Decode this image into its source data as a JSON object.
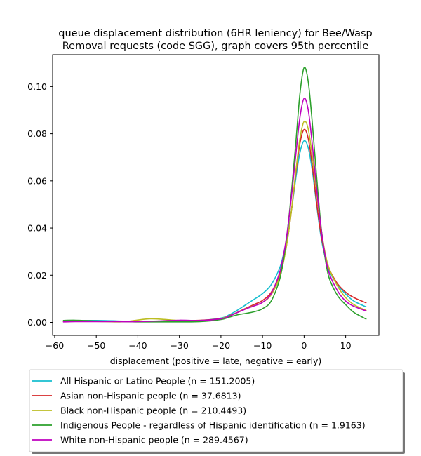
{
  "chart_data": {
    "type": "line",
    "title": "queue displacement distribution (6HR leniency) for Bee/Wasp\nRemoval  requests (code SGG), graph covers 95th percentile",
    "xlabel": "displacement (positive = late, negative = early)",
    "ylabel": "",
    "xlim": [
      -60.5,
      18
    ],
    "ylim": [
      -0.0055,
      0.1135
    ],
    "x_ticks": [
      -60,
      -50,
      -40,
      -30,
      -20,
      -10,
      0,
      10
    ],
    "x_tick_labels": [
      "−60",
      "−50",
      "−40",
      "−30",
      "−20",
      "−10",
      "0",
      "10"
    ],
    "y_ticks": [
      0.0,
      0.02,
      0.04,
      0.06,
      0.08,
      0.1
    ],
    "y_tick_labels": [
      "0.00",
      "0.02",
      "0.04",
      "0.06",
      "0.08",
      "0.10"
    ],
    "grid": false,
    "legend_position": "below",
    "series": [
      {
        "name": "All Hispanic or Latino People (n = 151.2005)",
        "color": "#17becf",
        "x": [
          -58,
          -55,
          -50,
          -45,
          -40,
          -35,
          -30,
          -25,
          -20,
          -18,
          -16,
          -14,
          -12,
          -10,
          -8,
          -6,
          -5,
          -4,
          -3,
          -2,
          -1,
          0,
          1,
          2,
          3,
          4,
          5,
          6,
          8,
          10,
          12,
          15
        ],
        "y": [
          0.0004,
          0.0007,
          0.0008,
          0.0006,
          0.0003,
          0.0003,
          0.0005,
          0.0008,
          0.0018,
          0.0032,
          0.0052,
          0.0075,
          0.0098,
          0.0122,
          0.0158,
          0.0225,
          0.0285,
          0.037,
          0.048,
          0.061,
          0.072,
          0.077,
          0.074,
          0.064,
          0.05,
          0.037,
          0.028,
          0.022,
          0.016,
          0.012,
          0.009,
          0.0065
        ]
      },
      {
        "name": "Asian non-Hispanic people (n = 37.6813)",
        "color": "#d62728",
        "x": [
          -58,
          -55,
          -50,
          -45,
          -40,
          -35,
          -30,
          -25,
          -20,
          -18,
          -16,
          -14,
          -12,
          -10,
          -8,
          -6,
          -5,
          -4,
          -3,
          -2,
          -1,
          0,
          1,
          2,
          3,
          4,
          5,
          6,
          8,
          10,
          12,
          15
        ],
        "y": [
          0.0004,
          0.0006,
          0.0005,
          0.0004,
          0.0003,
          0.0005,
          0.0008,
          0.0009,
          0.0016,
          0.0028,
          0.0043,
          0.006,
          0.0076,
          0.0093,
          0.0125,
          0.0195,
          0.026,
          0.035,
          0.048,
          0.063,
          0.076,
          0.0818,
          0.078,
          0.066,
          0.051,
          0.038,
          0.029,
          0.0228,
          0.0165,
          0.0128,
          0.0105,
          0.0082
        ]
      },
      {
        "name": "Black non-Hispanic people (n = 210.4493)",
        "color": "#bcbd22",
        "x": [
          -58,
          -55,
          -50,
          -45,
          -42,
          -40,
          -37,
          -34,
          -31,
          -28,
          -25,
          -22,
          -20,
          -18,
          -16,
          -14,
          -12,
          -10,
          -8,
          -6,
          -5,
          -4,
          -3,
          -2,
          -1,
          0,
          1,
          2,
          3,
          4,
          5,
          6,
          8,
          10,
          12,
          15
        ],
        "y": [
          0.0006,
          0.0005,
          0.0004,
          0.0002,
          0.0005,
          0.001,
          0.0015,
          0.0013,
          0.0009,
          0.0006,
          0.0006,
          0.0009,
          0.0016,
          0.0027,
          0.0042,
          0.0058,
          0.0071,
          0.0085,
          0.0115,
          0.0185,
          0.0252,
          0.035,
          0.048,
          0.064,
          0.078,
          0.0852,
          0.082,
          0.07,
          0.055,
          0.041,
          0.03,
          0.023,
          0.0155,
          0.0105,
          0.0075,
          0.005
        ]
      },
      {
        "name": "Indigenous People - regardless of Hispanic identification (n = 1.9163)",
        "color": "#2ca02c",
        "x": [
          -58,
          -55,
          -50,
          -45,
          -40,
          -35,
          -30,
          -25,
          -20,
          -18,
          -16,
          -14,
          -12,
          -10,
          -8,
          -6,
          -5,
          -4,
          -3,
          -2,
          -1,
          0,
          1,
          2,
          3,
          4,
          5,
          6,
          8,
          10,
          12,
          15
        ],
        "y": [
          0.0008,
          0.0009,
          0.0006,
          0.0004,
          0.0002,
          0.0002,
          0.0002,
          0.0003,
          0.0012,
          0.0022,
          0.0032,
          0.0038,
          0.0045,
          0.0058,
          0.0088,
          0.0175,
          0.026,
          0.039,
          0.056,
          0.076,
          0.097,
          0.108,
          0.102,
          0.084,
          0.062,
          0.042,
          0.028,
          0.019,
          0.0115,
          0.0075,
          0.0042,
          0.0013
        ]
      },
      {
        "name": "White non-Hispanic people (n = 289.4567)",
        "color": "#bf00bf",
        "x": [
          -58,
          -55,
          -50,
          -45,
          -40,
          -35,
          -30,
          -25,
          -20,
          -18,
          -16,
          -14,
          -12,
          -10,
          -8,
          -6,
          -5,
          -4,
          -3,
          -2,
          -1,
          0,
          1,
          2,
          3,
          4,
          5,
          6,
          8,
          10,
          12,
          15
        ],
        "y": [
          0.0002,
          0.0003,
          0.0003,
          0.0003,
          0.0003,
          0.0006,
          0.0009,
          0.0008,
          0.0015,
          0.0026,
          0.0042,
          0.0057,
          0.007,
          0.0085,
          0.012,
          0.0205,
          0.028,
          0.039,
          0.054,
          0.071,
          0.087,
          0.095,
          0.09,
          0.075,
          0.057,
          0.041,
          0.029,
          0.021,
          0.0135,
          0.009,
          0.0068,
          0.0048
        ]
      }
    ]
  }
}
